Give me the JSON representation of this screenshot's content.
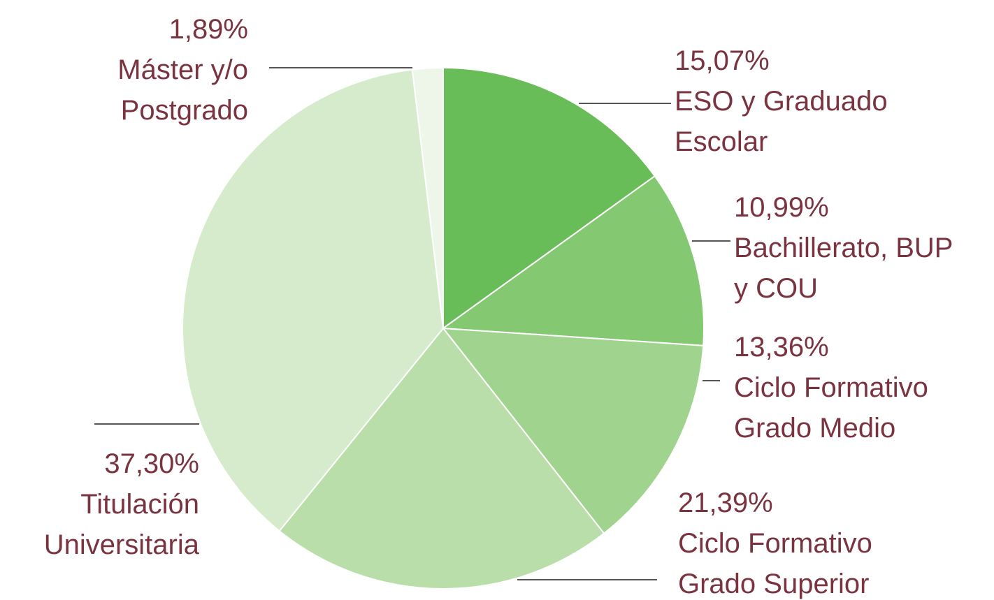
{
  "chart_data": {
    "type": "pie",
    "categories": [
      [
        "ESO y Graduado",
        "Escolar"
      ],
      [
        "Bachillerato, BUP",
        "y COU"
      ],
      [
        "Ciclo Formativo",
        "Grado Medio"
      ],
      [
        "Ciclo Formativo",
        "Grado Superior"
      ],
      [
        "Titulación",
        "Universitaria"
      ],
      [
        "Máster y/o",
        "Postgrado"
      ]
    ],
    "values": [
      15.07,
      10.99,
      13.36,
      21.39,
      37.3,
      1.89
    ],
    "value_labels": [
      "15,07%",
      "10,99%",
      "13,36%",
      "21,39%",
      "37,30%",
      "1,89%"
    ],
    "colors": [
      "#69bd58",
      "#84c871",
      "#a0d38e",
      "#badea9",
      "#d6ebcc",
      "#eef6ea"
    ]
  }
}
